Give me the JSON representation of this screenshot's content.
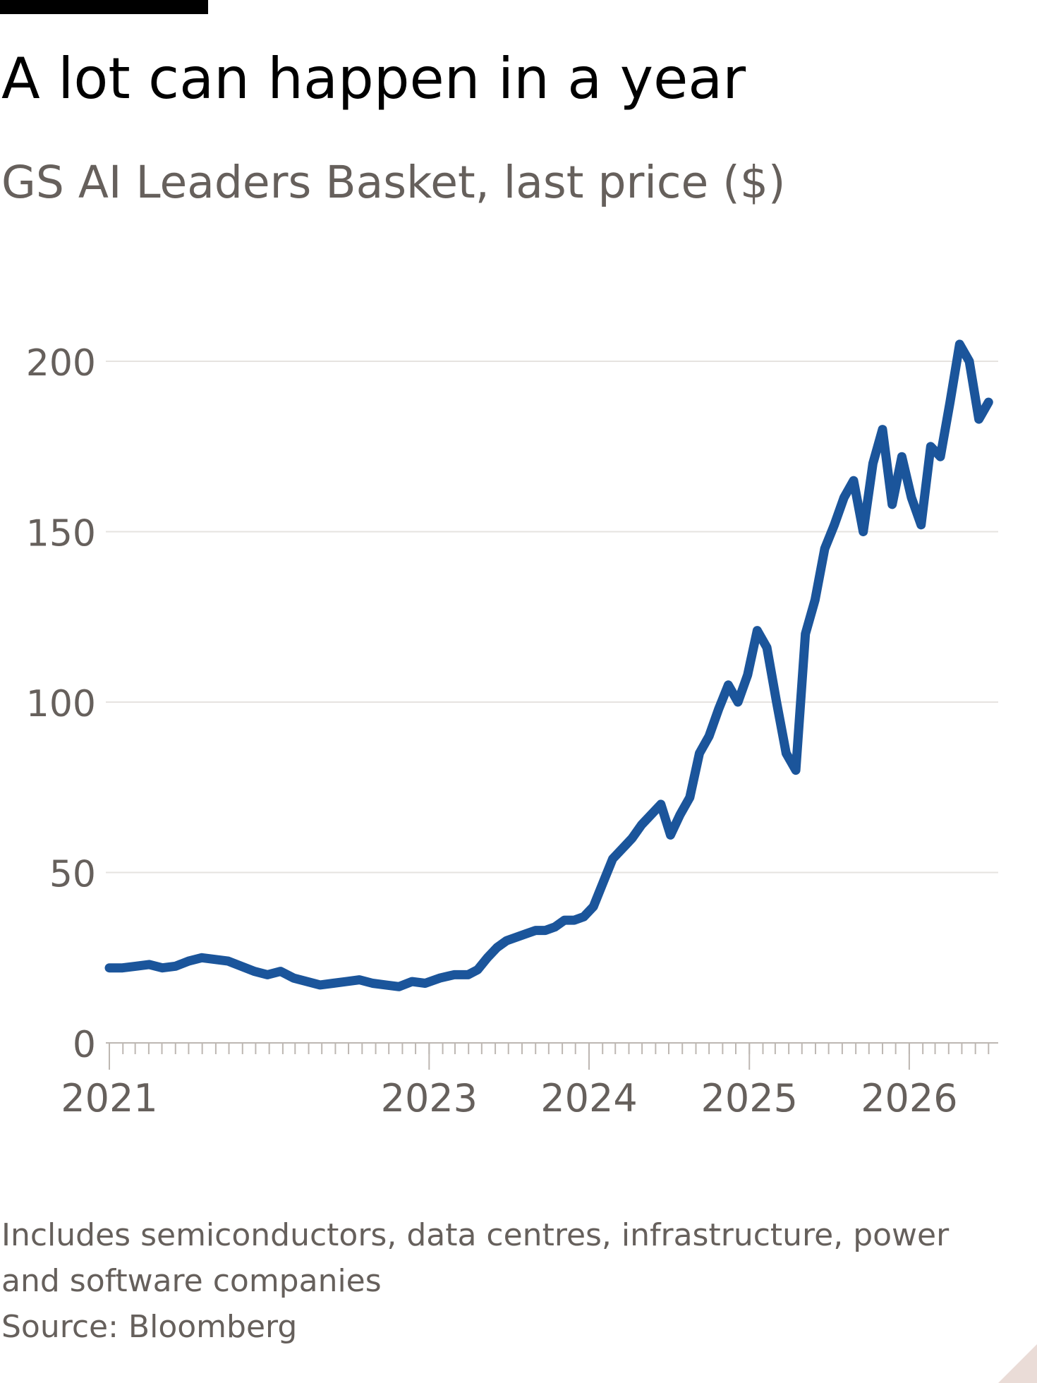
{
  "header": {
    "title": "A lot can happen in a year",
    "subtitle": "GS AI Leaders Basket, last price ($)"
  },
  "footer": {
    "note_line1": "Includes semiconductors, data centres, infrastructure, power",
    "note_line2": "and software companies",
    "source": "Source: Bloomberg"
  },
  "colors": {
    "line": "#1b559b",
    "grid": "#e6e3e0",
    "axis": "#bdb7b2",
    "text": "#66605c",
    "brand_bar": "#000000"
  },
  "chart_data": {
    "type": "line",
    "title": "A lot can happen in a year",
    "subtitle": "GS AI Leaders Basket, last price ($)",
    "xlabel": "",
    "ylabel": "",
    "ylim": [
      0,
      200
    ],
    "yticks": [
      0,
      50,
      100,
      150,
      200
    ],
    "x_tick_labels": [
      "2021",
      "2023",
      "2024",
      "2025",
      "2026"
    ],
    "x_tick_dates": [
      "2021-01-01",
      "2023-01-01",
      "2024-01-01",
      "2025-01-01",
      "2026-01-01"
    ],
    "xlim": [
      "2021-01-01",
      "2026-07-15"
    ],
    "grid": true,
    "legend": "none",
    "series": [
      {
        "x": [
          "2021-01-01",
          "2021-01-31",
          "2021-03-03",
          "2021-04-02",
          "2021-05-02",
          "2021-06-01",
          "2021-07-01",
          "2021-07-31",
          "2021-08-30",
          "2021-09-29",
          "2021-10-29",
          "2021-11-28",
          "2021-12-28",
          "2022-01-27",
          "2022-02-26",
          "2022-03-28",
          "2022-04-27",
          "2022-05-27",
          "2022-06-26",
          "2022-07-26",
          "2022-08-25",
          "2022-09-24",
          "2022-10-24",
          "2022-11-23",
          "2022-12-23",
          "2023-01-25",
          "2023-02-27",
          "2023-03-31",
          "2023-04-22",
          "2023-05-14",
          "2023-06-05",
          "2023-06-27",
          "2023-07-19",
          "2023-08-10",
          "2023-09-01",
          "2023-09-23",
          "2023-10-15",
          "2023-11-06",
          "2023-11-28",
          "2023-12-20",
          "2024-01-11",
          "2024-02-02",
          "2024-02-24",
          "2024-03-17",
          "2024-04-08",
          "2024-04-30",
          "2024-05-22",
          "2024-06-13",
          "2024-07-05",
          "2024-07-27",
          "2024-08-18",
          "2024-09-09",
          "2024-10-01",
          "2024-10-23",
          "2024-11-14",
          "2024-12-06",
          "2024-12-28",
          "2025-01-19",
          "2025-02-10",
          "2025-03-04",
          "2025-03-26",
          "2025-04-17",
          "2025-05-09",
          "2025-05-31",
          "2025-06-22",
          "2025-07-14",
          "2025-08-05",
          "2025-08-27",
          "2025-09-18",
          "2025-10-10",
          "2025-11-01",
          "2025-11-23",
          "2025-12-15",
          "2026-01-06",
          "2026-01-28",
          "2026-02-19",
          "2026-03-13",
          "2026-04-04",
          "2026-04-26",
          "2026-05-18",
          "2026-06-09",
          "2026-07-01"
        ],
        "values": [
          22,
          22,
          22.5,
          23,
          22,
          22.5,
          24,
          25,
          24.5,
          24,
          22.5,
          21,
          20,
          21,
          19,
          18,
          17,
          17.5,
          18,
          18.5,
          17.5,
          17,
          16.5,
          18,
          17.5,
          19,
          20,
          20,
          21.5,
          25,
          28,
          30,
          31,
          32,
          33,
          33,
          34,
          36,
          36,
          37,
          40,
          47,
          54,
          57,
          60,
          64,
          67,
          70,
          61,
          67,
          72,
          85,
          90,
          98,
          105,
          100,
          108,
          121,
          116,
          100,
          85,
          80,
          120,
          130,
          145,
          152,
          160,
          165,
          150,
          170,
          180,
          158,
          172,
          160,
          152,
          175,
          172,
          188,
          205,
          200,
          183,
          188
        ]
      }
    ]
  }
}
